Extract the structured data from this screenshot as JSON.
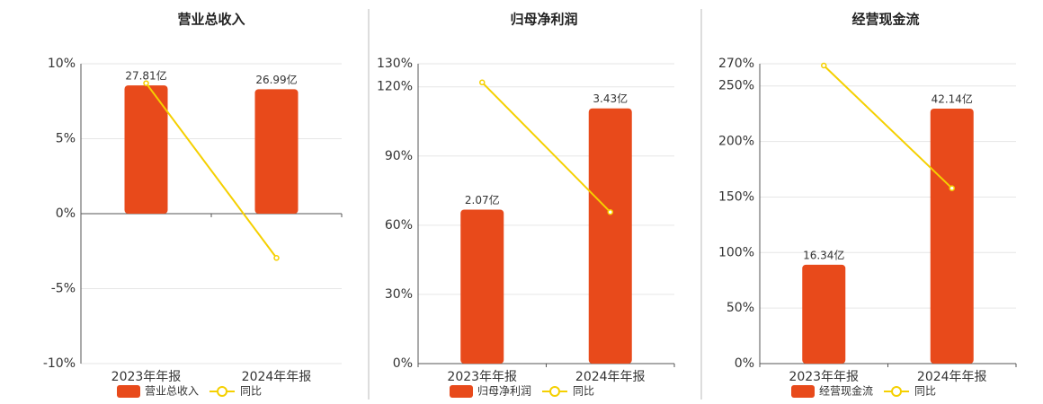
{
  "chart_data": [
    {
      "type": "bar",
      "title": "营业总收入",
      "categories": [
        "2023年年报",
        "2024年年报"
      ],
      "series": [
        {
          "name": "营业总收入",
          "color": "#e84a1b",
          "axis": "y2",
          "values": [
            27.81,
            26.99
          ],
          "value_labels": [
            "27.81亿",
            "26.99亿"
          ]
        },
        {
          "name": "同比",
          "type": "line",
          "color": "#f5d000",
          "values": [
            8.7,
            -2.95
          ]
        }
      ],
      "ylim": [
        -10,
        10
      ],
      "yticks": [
        {
          "value": -10,
          "label": "-10%"
        },
        {
          "value": -5,
          "label": "-5%"
        },
        {
          "value": 0,
          "label": "0%"
        },
        {
          "value": 5,
          "label": "5%"
        },
        {
          "value": 10,
          "label": "10%"
        }
      ],
      "y2lim": [
        -32.5,
        32.5
      ],
      "grid": true
    },
    {
      "type": "bar",
      "title": "归母净利润",
      "categories": [
        "2023年年报",
        "2024年年报"
      ],
      "series": [
        {
          "name": "归母净利润",
          "color": "#e84a1b",
          "axis": "y2",
          "values": [
            2.07,
            3.43
          ],
          "value_labels": [
            "2.07亿",
            "3.43亿"
          ]
        },
        {
          "name": "同比",
          "type": "line",
          "color": "#f5d000",
          "values": [
            121.9,
            65.7
          ]
        }
      ],
      "ylim": [
        0,
        130
      ],
      "yticks": [
        {
          "value": 0,
          "label": "0%"
        },
        {
          "value": 30,
          "label": "30%"
        },
        {
          "value": 60,
          "label": "60%"
        },
        {
          "value": 90,
          "label": "90%"
        },
        {
          "value": 120,
          "label": "120%"
        },
        {
          "value": 130,
          "label": "130%"
        }
      ],
      "y2lim": [
        0,
        4.03
      ],
      "grid": true
    },
    {
      "type": "bar",
      "title": "经营现金流",
      "categories": [
        "2023年年报",
        "2024年年报"
      ],
      "series": [
        {
          "name": "经营现金流",
          "color": "#e84a1b",
          "axis": "y2",
          "values": [
            16.34,
            42.14
          ],
          "value_labels": [
            "16.34亿",
            "42.14亿"
          ]
        },
        {
          "name": "同比",
          "type": "line",
          "color": "#f5d000",
          "values": [
            268.4,
            157.9
          ]
        }
      ],
      "ylim": [
        0,
        270
      ],
      "yticks": [
        {
          "value": 0,
          "label": "0%"
        },
        {
          "value": 50,
          "label": "50%"
        },
        {
          "value": 100,
          "label": "100%"
        },
        {
          "value": 150,
          "label": "150%"
        },
        {
          "value": 200,
          "label": "200%"
        },
        {
          "value": 250,
          "label": "250%"
        },
        {
          "value": 270,
          "label": "270%"
        }
      ],
      "y2lim": [
        0,
        49.56
      ],
      "grid": true
    }
  ]
}
